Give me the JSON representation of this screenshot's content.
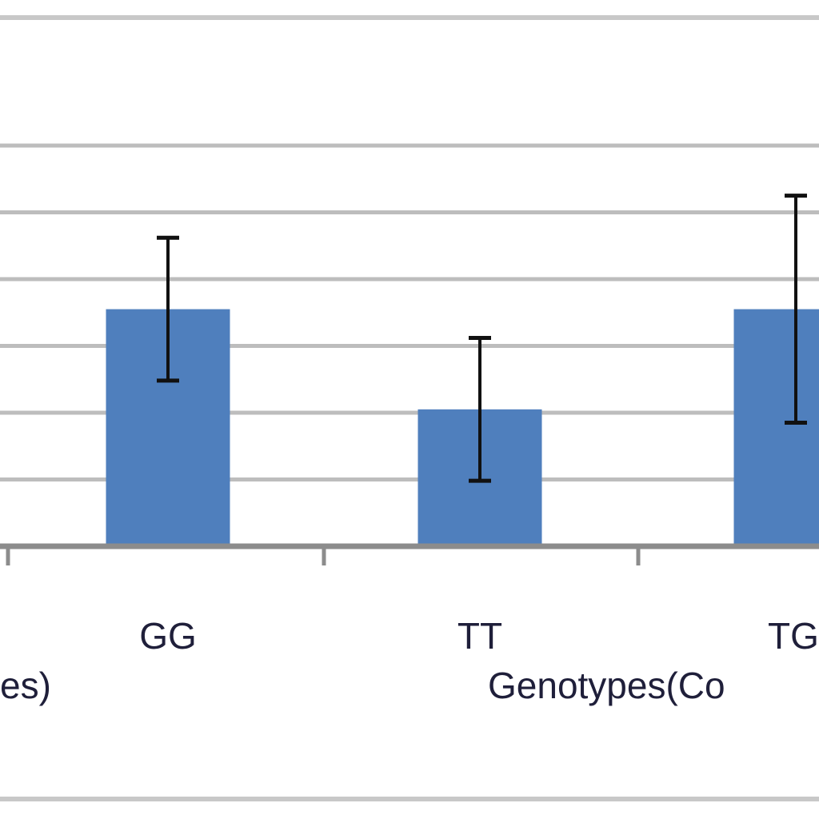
{
  "chart_data": {
    "type": "bar",
    "categories": [
      "",
      "GG",
      "TT",
      "TG"
    ],
    "series": [
      {
        "values": [
          null,
          3.55,
          2.05,
          3.55
        ],
        "error": [
          null,
          1.07,
          1.07,
          1.7
        ]
      }
    ],
    "ylim": [
      0,
      6
    ],
    "grid": true,
    "partial_labels": {
      "left": "es)",
      "center": "Genotypes(Co"
    },
    "colors": {
      "bar": "#4f7fbd",
      "grid": "#bdbdbd",
      "axis": "#8c8c8c",
      "error_bar": "#111111",
      "frame": "#c8c8c8"
    }
  }
}
